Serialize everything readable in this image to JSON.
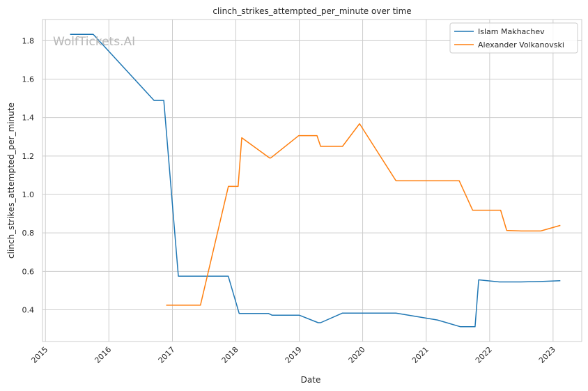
{
  "watermark": "WolfTickets.AI",
  "chart_data": {
    "type": "line",
    "title": "clinch_strikes_attempted_per_minute over time",
    "xlabel": "Date",
    "ylabel": "clinch_strikes_attempted_per_minute",
    "x_ticks": [
      "2015",
      "2016",
      "2017",
      "2018",
      "2019",
      "2020",
      "2021",
      "2022",
      "2023"
    ],
    "y_ticks": [
      "0.4",
      "0.6",
      "0.8",
      "1.0",
      "1.2",
      "1.4",
      "1.6",
      "1.8"
    ],
    "xlim": [
      "2014-12-15",
      "2023-06-15"
    ],
    "ylim": [
      0.235,
      1.91
    ],
    "grid": true,
    "legend_position": "top-right",
    "series": [
      {
        "name": "Islam Makhachev",
        "color": "#1f77b4",
        "points": [
          [
            "2015-05-23",
            1.833
          ],
          [
            "2015-10-03",
            1.833
          ],
          [
            "2016-09-17",
            1.489
          ],
          [
            "2016-11-12",
            1.489
          ],
          [
            "2017-02-04",
            0.575
          ],
          [
            "2017-11-18",
            0.575
          ],
          [
            "2018-01-20",
            0.381
          ],
          [
            "2018-07-07",
            0.381
          ],
          [
            "2018-07-28",
            0.372
          ],
          [
            "2019-01-01",
            0.372
          ],
          [
            "2019-04-20",
            0.333
          ],
          [
            "2019-05-04",
            0.333
          ],
          [
            "2019-09-07",
            0.383
          ],
          [
            "2020-07-11",
            0.383
          ],
          [
            "2021-03-06",
            0.347
          ],
          [
            "2021-07-17",
            0.312
          ],
          [
            "2021-10-09",
            0.312
          ],
          [
            "2021-10-30",
            0.556
          ],
          [
            "2022-02-26",
            0.545
          ],
          [
            "2022-06-30",
            0.545
          ],
          [
            "2022-10-22",
            0.547
          ],
          [
            "2023-02-12",
            0.551
          ]
        ]
      },
      {
        "name": "Alexander Volkanovski",
        "color": "#ff7f0e",
        "points": [
          [
            "2016-11-26",
            0.424
          ],
          [
            "2017-06-11",
            0.424
          ],
          [
            "2017-11-19",
            1.042
          ],
          [
            "2018-01-14",
            1.042
          ],
          [
            "2018-02-04",
            1.295
          ],
          [
            "2018-07-14",
            1.19
          ],
          [
            "2018-07-21",
            1.19
          ],
          [
            "2018-12-29",
            1.306
          ],
          [
            "2019-04-13",
            1.306
          ],
          [
            "2019-05-04",
            1.25
          ],
          [
            "2019-09-07",
            1.25
          ],
          [
            "2019-12-14",
            1.368
          ],
          [
            "2020-07-11",
            1.071
          ],
          [
            "2021-07-10",
            1.071
          ],
          [
            "2021-09-25",
            0.918
          ],
          [
            "2022-03-05",
            0.918
          ],
          [
            "2022-04-09",
            0.813
          ],
          [
            "2022-07-02",
            0.81
          ],
          [
            "2022-10-22",
            0.81
          ],
          [
            "2023-02-12",
            0.839
          ]
        ]
      }
    ]
  }
}
